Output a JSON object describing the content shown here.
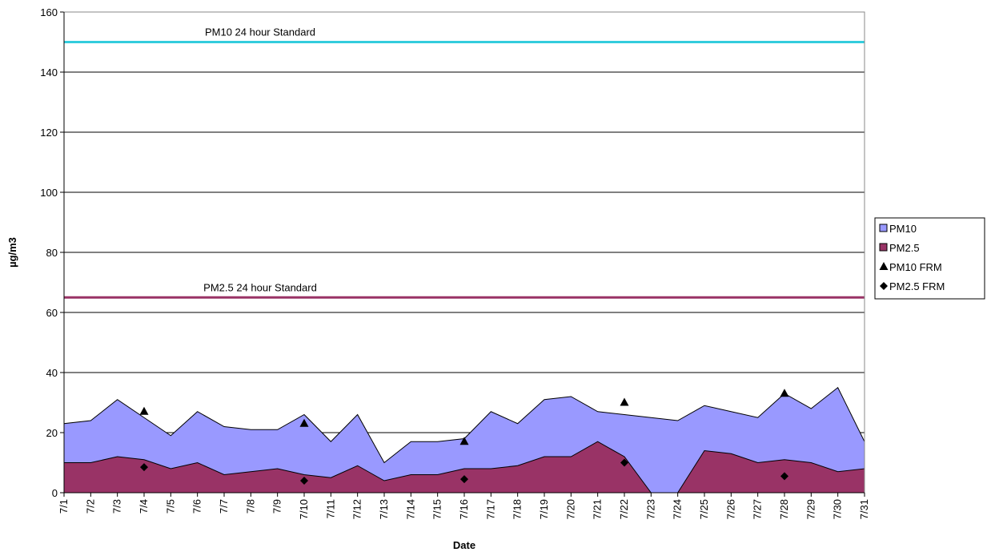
{
  "chart_data": {
    "type": "area",
    "y_label": "µg/m3",
    "x_label": "Date",
    "categories": [
      "7/1",
      "7/2",
      "7/3",
      "7/4",
      "7/5",
      "7/6",
      "7/7",
      "7/8",
      "7/9",
      "7/10",
      "7/11",
      "7/12",
      "7/13",
      "7/14",
      "7/15",
      "7/16",
      "7/17",
      "7/18",
      "7/19",
      "7/20",
      "7/21",
      "7/22",
      "7/23",
      "7/24",
      "7/25",
      "7/26",
      "7/27",
      "7/28",
      "7/29",
      "7/30",
      "7/31"
    ],
    "series": [
      {
        "name": "PM10",
        "type": "area",
        "color": "#9999ff",
        "values": [
          23,
          24,
          31,
          25,
          19,
          27,
          22,
          21,
          21,
          26,
          17,
          26,
          10,
          17,
          17,
          18,
          27,
          23,
          31,
          32,
          27,
          26,
          25,
          24,
          29,
          27,
          25,
          33,
          28,
          35,
          17
        ]
      },
      {
        "name": "PM2.5",
        "type": "area",
        "color": "#993366",
        "values": [
          10,
          10,
          12,
          11,
          8,
          10,
          6,
          7,
          8,
          6,
          5,
          9,
          4,
          6,
          6,
          8,
          8,
          9,
          12,
          12,
          17,
          12,
          0,
          0,
          14,
          13,
          10,
          11,
          10,
          7,
          8
        ]
      },
      {
        "name": "PM10 FRM",
        "type": "triangle",
        "color": "#000000",
        "values": [
          null,
          null,
          null,
          27,
          null,
          null,
          null,
          null,
          null,
          23,
          null,
          null,
          null,
          null,
          null,
          17,
          null,
          null,
          null,
          null,
          null,
          30,
          null,
          null,
          null,
          null,
          null,
          33,
          null,
          null,
          null
        ]
      },
      {
        "name": "PM2.5 FRM",
        "type": "diamond",
        "color": "#000000",
        "values": [
          null,
          null,
          null,
          8.5,
          null,
          null,
          null,
          null,
          null,
          4,
          null,
          null,
          null,
          null,
          null,
          4.5,
          null,
          null,
          null,
          null,
          null,
          10,
          null,
          null,
          null,
          null,
          null,
          5.5,
          null,
          null,
          null
        ]
      }
    ],
    "reference_lines": [
      {
        "label": "PM10 24 hour Standard",
        "value": 150,
        "color": "#33ccdd"
      },
      {
        "label": "PM2.5 24 hour Standard",
        "value": 65,
        "color": "#993366"
      }
    ],
    "ylim": [
      0,
      160
    ],
    "yticks": [
      0,
      20,
      40,
      60,
      80,
      100,
      120,
      140,
      160
    ],
    "grid": true
  }
}
